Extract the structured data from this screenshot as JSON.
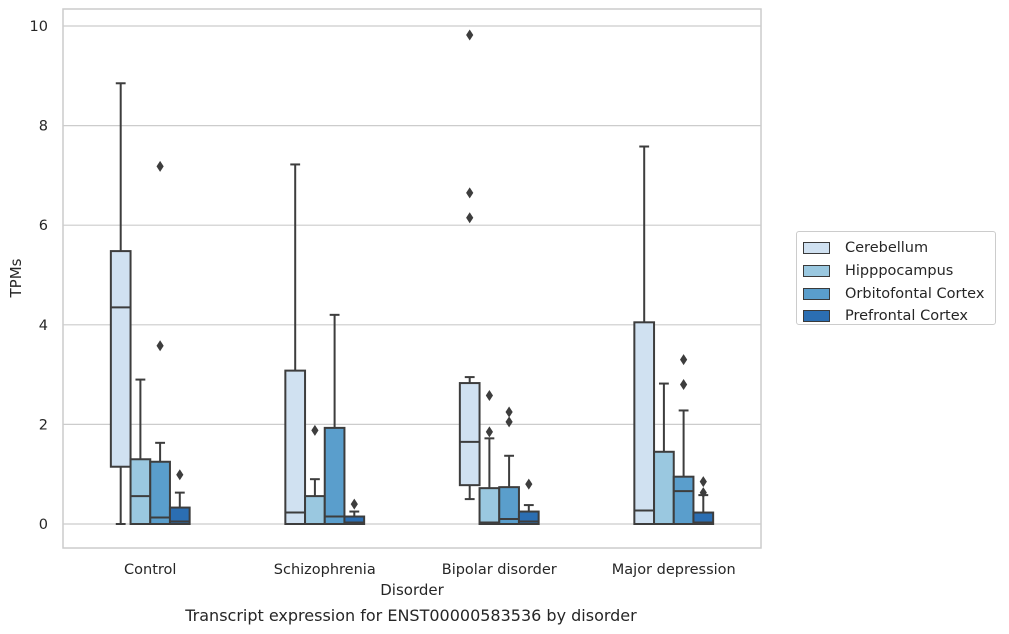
{
  "chart_data": {
    "type": "box",
    "categories": [
      "Control",
      "Schizophrenia",
      "Bipolar disorder",
      "Major depression"
    ],
    "xlabel": "Disorder",
    "ylabel": "TPMs",
    "caption": "Transcript expression for ENST00000583536 by disorder",
    "ylim": [
      -0.45,
      10.35
    ],
    "yticks": [
      0,
      2,
      4,
      6,
      8,
      10
    ],
    "grid": "horizontal",
    "legend_position": "right",
    "series": [
      {
        "name": "Cerebellum",
        "color": "#d0e1f1",
        "boxes": [
          {
            "whisker_low": 0,
            "q1": 1.15,
            "median": 4.35,
            "q3": 5.48,
            "whisker_high": 8.85,
            "outliers": []
          },
          {
            "whisker_low": 0,
            "q1": 0,
            "median": 0.23,
            "q3": 3.08,
            "whisker_high": 7.22,
            "outliers": []
          },
          {
            "whisker_low": 0.5,
            "q1": 0.78,
            "median": 1.65,
            "q3": 2.83,
            "whisker_high": 2.95,
            "outliers": [
              6.15,
              6.65,
              9.82
            ]
          },
          {
            "whisker_low": 0,
            "q1": 0,
            "median": 0.27,
            "q3": 4.05,
            "whisker_high": 7.58,
            "outliers": []
          }
        ]
      },
      {
        "name": "Hipppocampus",
        "color": "#9ac8e0",
        "boxes": [
          {
            "whisker_low": 0,
            "q1": 0,
            "median": 0.56,
            "q3": 1.3,
            "whisker_high": 2.9,
            "outliers": []
          },
          {
            "whisker_low": 0,
            "q1": 0,
            "median": 0,
            "q3": 0.56,
            "whisker_high": 0.9,
            "outliers": [
              1.88
            ]
          },
          {
            "whisker_low": 0,
            "q1": 0,
            "median": 0.03,
            "q3": 0.72,
            "whisker_high": 1.72,
            "outliers": [
              1.85,
              2.58
            ]
          },
          {
            "whisker_low": 0,
            "q1": 0,
            "median": 0,
            "q3": 1.45,
            "whisker_high": 2.82,
            "outliers": []
          }
        ]
      },
      {
        "name": "Orbitofontal Cortex",
        "color": "#5a9ecc",
        "boxes": [
          {
            "whisker_low": 0,
            "q1": 0,
            "median": 0.13,
            "q3": 1.25,
            "whisker_high": 1.63,
            "outliers": [
              3.58,
              7.18
            ]
          },
          {
            "whisker_low": 0,
            "q1": 0,
            "median": 0.15,
            "q3": 1.93,
            "whisker_high": 4.2,
            "outliers": []
          },
          {
            "whisker_low": 0,
            "q1": 0,
            "median": 0.1,
            "q3": 0.74,
            "whisker_high": 1.37,
            "outliers": [
              2.05,
              2.25
            ]
          },
          {
            "whisker_low": 0,
            "q1": 0,
            "median": 0.66,
            "q3": 0.95,
            "whisker_high": 2.28,
            "outliers": [
              2.8,
              3.3
            ]
          }
        ]
      },
      {
        "name": "Prefrontal Cortex",
        "color": "#2b6eb2",
        "boxes": [
          {
            "whisker_low": 0,
            "q1": 0,
            "median": 0.05,
            "q3": 0.33,
            "whisker_high": 0.63,
            "outliers": [
              0.99
            ]
          },
          {
            "whisker_low": 0,
            "q1": 0,
            "median": 0.03,
            "q3": 0.15,
            "whisker_high": 0.25,
            "outliers": [
              0.4
            ]
          },
          {
            "whisker_low": 0,
            "q1": 0,
            "median": 0.05,
            "q3": 0.25,
            "whisker_high": 0.38,
            "outliers": [
              0.8
            ]
          },
          {
            "whisker_low": 0,
            "q1": 0,
            "median": 0.03,
            "q3": 0.23,
            "whisker_high": 0.58,
            "outliers": [
              0.63,
              0.85
            ]
          }
        ]
      }
    ]
  }
}
